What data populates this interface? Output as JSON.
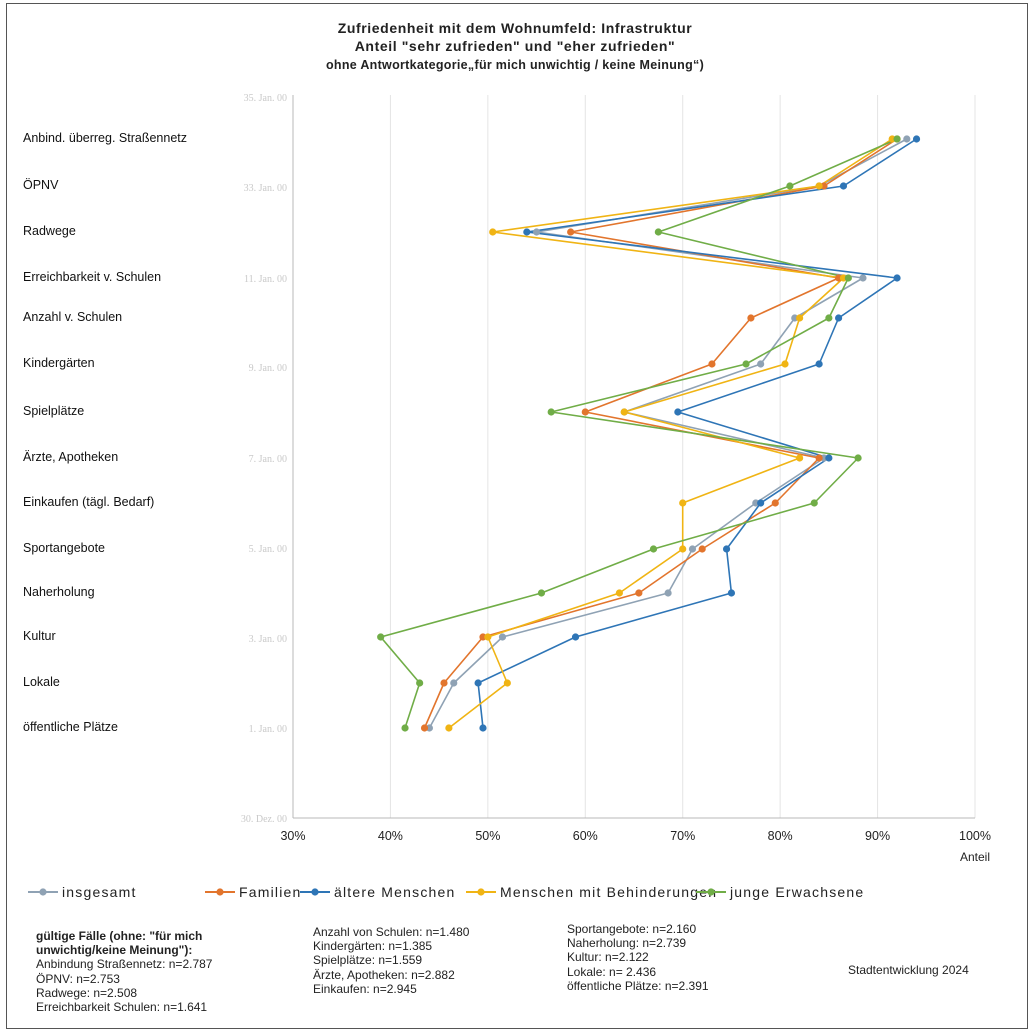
{
  "titles": {
    "line1": "Zufriedenheit mit dem Wohnumfeld: Infrastruktur",
    "line2": "Anteil \"sehr zufrieden\" und \"eher zufrieden\"",
    "line3": "ohne Antwortkategorie„für mich unwichtig / keine Meinung“)"
  },
  "chart_data": {
    "type": "line",
    "orientation": "horizontal-values",
    "title": "Zufriedenheit mit dem Wohnumfeld: Infrastruktur",
    "xlabel": "Anteil",
    "xlim": [
      0.3,
      1.0
    ],
    "xticks": [
      "30%",
      "40%",
      "50%",
      "60%",
      "70%",
      "80%",
      "90%",
      "100%"
    ],
    "ghost_yticks": [
      "35. Jan. 00",
      "33. Jan. 00",
      "11. Jan. 00",
      "9. Jan. 00",
      "7. Jan. 00",
      "5. Jan. 00",
      "3. Jan. 00",
      "1. Jan. 00",
      "30. Dez. 00"
    ],
    "grid": true,
    "legend_position": "bottom",
    "categories": [
      "Anbind. überreg. Straßennetz",
      "ÖPNV",
      "Radwege",
      "Erreichbarkeit v. Schulen",
      "Anzahl v. Schulen",
      "Kindergärten",
      "Spielplätze",
      "Ärzte, Apotheken",
      "Einkaufen (tägl. Bedarf)",
      "Sportangebote",
      "Naherholung",
      "Kultur",
      "Lokale",
      "öffentliche Plätze"
    ],
    "series": [
      {
        "name": "insgesamt",
        "color": "#8fa2b4",
        "values": [
          0.93,
          0.84,
          0.55,
          0.885,
          0.815,
          0.78,
          0.64,
          0.845,
          0.775,
          0.71,
          0.685,
          0.515,
          0.465,
          0.44
        ]
      },
      {
        "name": "Familien",
        "color": "#e2752d",
        "values": [
          0.92,
          0.845,
          0.585,
          0.86,
          0.77,
          0.73,
          0.6,
          0.84,
          0.795,
          0.72,
          0.655,
          0.495,
          0.455,
          0.435
        ]
      },
      {
        "name": "ältere Menschen",
        "color": "#2e75b6",
        "values": [
          0.94,
          0.865,
          0.54,
          0.92,
          0.86,
          0.84,
          0.695,
          0.85,
          0.78,
          0.745,
          0.75,
          0.59,
          0.49,
          0.495
        ]
      },
      {
        "name": "Menschen mit Behinderungen",
        "color": "#f0b414",
        "values": [
          0.915,
          0.84,
          0.505,
          0.865,
          0.82,
          0.805,
          0.64,
          0.82,
          0.7,
          0.7,
          0.635,
          0.5,
          0.52,
          0.46
        ]
      },
      {
        "name": "junge Erwachsene",
        "color": "#70ad47",
        "values": [
          0.92,
          0.81,
          0.675,
          0.87,
          0.85,
          0.765,
          0.565,
          0.88,
          0.835,
          0.67,
          0.555,
          0.39,
          0.43,
          0.415
        ]
      }
    ]
  },
  "notes": {
    "col1": [
      "gültige Fälle (ohne: \"für mich",
      "unwichtig/keine Meinung\"):",
      "Anbindung Straßennetz: n=2.787",
      "ÖPNV: n=2.753",
      "Radwege: n=2.508",
      "Erreichbarkeit Schulen: n=1.641"
    ],
    "col2": [
      "Anzahl von Schulen: n=1.480",
      "Kindergärten: n=1.385",
      "Spielplätze: n=1.559",
      "Ärzte, Apotheken: n=2.882",
      "Einkaufen: n=2.945"
    ],
    "col3": [
      "Sportangebote: n=2.160",
      "Naherholung: n=2.739",
      "Kultur: n=2.122",
      "Lokale: n= 2.436",
      "öffentliche Plätze: n=2.391"
    ]
  },
  "credit": "Stadtentwicklung 2024"
}
